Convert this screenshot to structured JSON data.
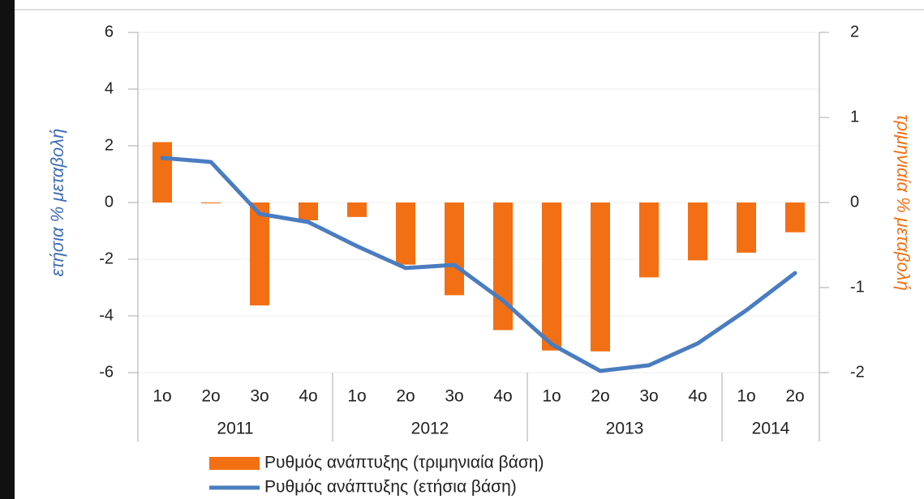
{
  "chart_data": {
    "type": "bar",
    "categories": [
      "1ο",
      "2ο",
      "3ο",
      "4ο",
      "1ο",
      "2ο",
      "3ο",
      "4ο",
      "1ο",
      "2ο",
      "3ο",
      "4ο",
      "1ο",
      "2ο"
    ],
    "groups": [
      {
        "label": "2011",
        "span": 4
      },
      {
        "label": "2012",
        "span": 4
      },
      {
        "label": "2013",
        "span": 4
      },
      {
        "label": "2014",
        "span": 2
      }
    ],
    "ylabel": "ετήσια % μεταβολή",
    "y2label": "τριμηνιαία % μεταβολή",
    "ylim": [
      -6,
      6
    ],
    "yticks": [
      -6,
      -4,
      -2,
      0,
      2,
      4,
      6
    ],
    "y2lim": [
      -2,
      2
    ],
    "y2ticks": [
      -2,
      -1,
      0,
      1,
      2
    ],
    "grid": true,
    "series": [
      {
        "name": "Ρυθμός ανάπτυξης (τριμηνιαία βάση)",
        "type": "bar",
        "axis": "y2",
        "color": "#f36f13",
        "values": [
          0.71,
          0,
          -1.21,
          -0.21,
          -0.17,
          -0.73,
          -1.09,
          -1.5,
          -1.74,
          -1.75,
          -0.88,
          -0.68,
          -0.59,
          -0.35
        ]
      },
      {
        "name": "Ρυθμός ανάπτυξης (ετήσια βάση)",
        "type": "line",
        "axis": "y",
        "color": "#4a7cc0",
        "values": [
          1.57,
          1.43,
          -0.4,
          -0.69,
          -1.54,
          -2.31,
          -2.2,
          -3.46,
          -5.0,
          -5.94,
          -5.74,
          -4.97,
          -3.8,
          -2.49
        ]
      }
    ]
  }
}
